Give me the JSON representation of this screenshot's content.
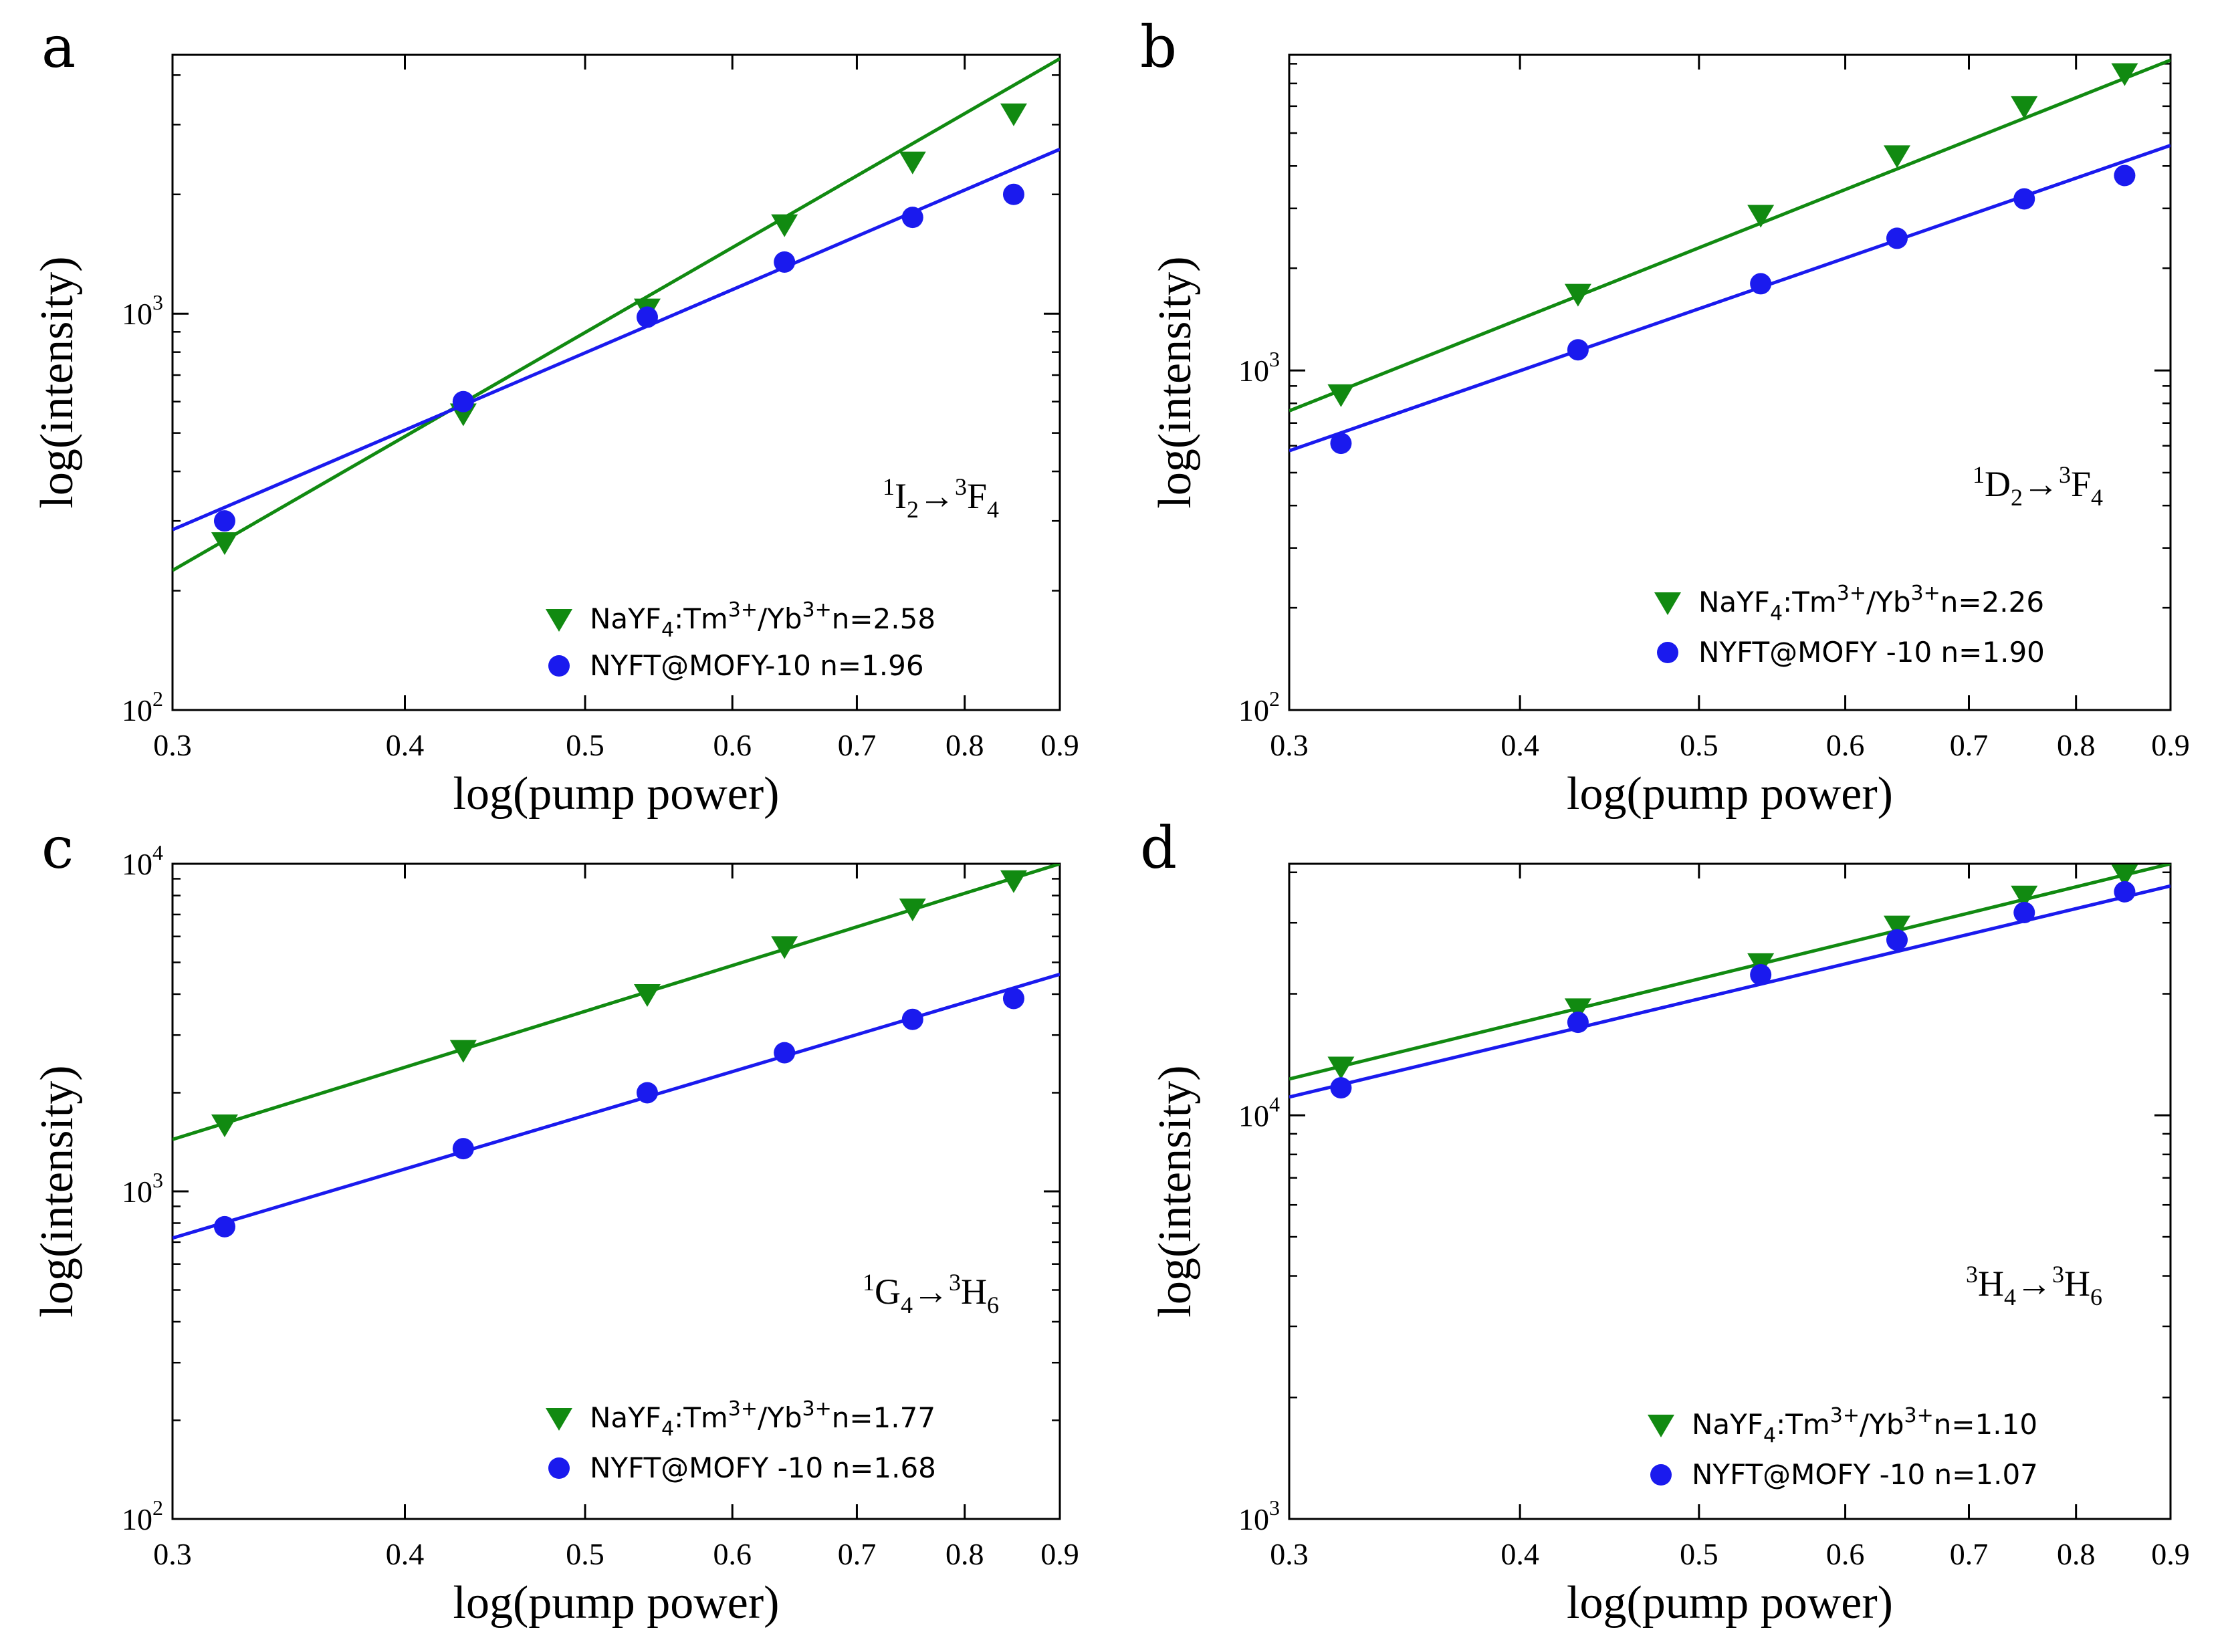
{
  "colors": {
    "green": "#118a11",
    "blue": "#1a1aee",
    "axis": "#000000"
  },
  "chart_data": [
    {
      "type": "scatter",
      "panel": "a",
      "xlabel": "log(pump power)",
      "ylabel": "log(intensity)",
      "xscale": "log",
      "yscale": "log",
      "xlim": [
        0.3,
        0.9
      ],
      "ylim": [
        100,
        4500
      ],
      "xticks": [
        0.3,
        0.4,
        0.5,
        0.6,
        0.7,
        0.8,
        0.9
      ],
      "xtick_labels": [
        "0.3",
        "0.4",
        "0.5",
        "0.6",
        "0.7",
        "0.8",
        "0.9"
      ],
      "yticks": [
        {
          "value": 100,
          "base": "10",
          "exp": "2"
        },
        {
          "value": 1000,
          "base": "10",
          "exp": "3"
        }
      ],
      "transition": {
        "upper_sup": "1",
        "upper": "I",
        "upper_sub": "2",
        "arrow": "→",
        "lower_sup": "3",
        "lower": "F",
        "lower_sub": "4"
      },
      "series": [
        {
          "name": "NaYF4:Tm3+/Yb3+",
          "legend": {
            "pre": "NaYF",
            "sub1": "4",
            "mid": ":Tm",
            "sup1": "3+",
            "slash": "/Yb",
            "sup2": "3+",
            "post": "n=2.58"
          },
          "color": "#118a11",
          "marker": "triangle-down",
          "n": 2.58,
          "x": [
            0.32,
            0.43,
            0.54,
            0.64,
            0.75,
            0.85
          ],
          "y": [
            265,
            560,
            1030,
            1680,
            2420,
            3200
          ],
          "fit_line": [
            [
              0.3,
              225
            ],
            [
              0.9,
              4400
            ]
          ]
        },
        {
          "name": "NYFT@MOFY-10",
          "legend": {
            "pre": "NYFT@MOFY-10 n=1.96"
          },
          "color": "#1a1aee",
          "marker": "circle",
          "n": 1.96,
          "x": [
            0.32,
            0.43,
            0.54,
            0.64,
            0.75,
            0.85
          ],
          "y": [
            300,
            600,
            980,
            1350,
            1750,
            2000
          ],
          "fit_line": [
            [
              0.3,
              285
            ],
            [
              0.9,
              2600
            ]
          ]
        }
      ]
    },
    {
      "type": "scatter",
      "panel": "b",
      "xlabel": "log(pump power)",
      "ylabel": "log(intensity)",
      "xscale": "log",
      "yscale": "log",
      "xlim": [
        0.3,
        0.9
      ],
      "ylim": [
        100,
        8500
      ],
      "xticks": [
        0.3,
        0.4,
        0.5,
        0.6,
        0.7,
        0.8,
        0.9
      ],
      "xtick_labels": [
        "0.3",
        "0.4",
        "0.5",
        "0.6",
        "0.7",
        "0.8",
        "0.9"
      ],
      "yticks": [
        {
          "value": 100,
          "base": "10",
          "exp": "2"
        },
        {
          "value": 1000,
          "base": "10",
          "exp": "3"
        }
      ],
      "transition": {
        "upper_sup": "1",
        "upper": "D",
        "upper_sub": "2",
        "arrow": "→",
        "lower_sup": "3",
        "lower": "F",
        "lower_sub": "4"
      },
      "series": [
        {
          "name": "NaYF4:Tm3+/Yb3+",
          "legend": {
            "pre": "NaYF",
            "sub1": "4",
            "mid": ":Tm",
            "sup1": "3+",
            "slash": "/Yb",
            "sup2": "3+",
            "post": "n=2.26"
          },
          "color": "#118a11",
          "marker": "triangle-down",
          "n": 2.26,
          "x": [
            0.32,
            0.43,
            0.54,
            0.64,
            0.75,
            0.85
          ],
          "y": [
            850,
            1680,
            2870,
            4300,
            6000,
            7500
          ],
          "fit_line": [
            [
              0.3,
              760
            ],
            [
              0.9,
              8200
            ]
          ]
        },
        {
          "name": "NYFT@MOFY-10",
          "legend": {
            "pre": "NYFT@MOFY -10 n=1.90"
          },
          "color": "#1a1aee",
          "marker": "circle",
          "n": 1.9,
          "x": [
            0.32,
            0.43,
            0.54,
            0.64,
            0.75,
            0.85
          ],
          "y": [
            610,
            1150,
            1800,
            2450,
            3200,
            3750
          ],
          "fit_line": [
            [
              0.3,
              580
            ],
            [
              0.9,
              4600
            ]
          ]
        }
      ]
    },
    {
      "type": "scatter",
      "panel": "c",
      "xlabel": "log(pump power)",
      "ylabel": "log(intensity)",
      "xscale": "log",
      "yscale": "log",
      "xlim": [
        0.3,
        0.9
      ],
      "ylim": [
        100,
        10000
      ],
      "xticks": [
        0.3,
        0.4,
        0.5,
        0.6,
        0.7,
        0.8,
        0.9
      ],
      "xtick_labels": [
        "0.3",
        "0.4",
        "0.5",
        "0.6",
        "0.7",
        "0.8",
        "0.9"
      ],
      "yticks": [
        {
          "value": 100,
          "base": "10",
          "exp": "2"
        },
        {
          "value": 1000,
          "base": "10",
          "exp": "3"
        },
        {
          "value": 10000,
          "base": "10",
          "exp": "4"
        }
      ],
      "transition": {
        "upper_sup": "1",
        "upper": "G",
        "upper_sub": "4",
        "arrow": "→",
        "lower_sup": "3",
        "lower": "H",
        "lower_sub": "6"
      },
      "series": [
        {
          "name": "NaYF4:Tm3+/Yb3+",
          "legend": {
            "pre": "NaYF",
            "sub1": "4",
            "mid": ":Tm",
            "sup1": "3+",
            "slash": "/Yb",
            "sup2": "3+",
            "post": "n=1.77"
          },
          "color": "#118a11",
          "marker": "triangle-down",
          "n": 1.77,
          "x": [
            0.32,
            0.43,
            0.54,
            0.64,
            0.75,
            0.85
          ],
          "y": [
            1600,
            2700,
            4000,
            5600,
            7300,
            8900
          ],
          "fit_line": [
            [
              0.3,
              1440
            ],
            [
              0.9,
              10000
            ]
          ]
        },
        {
          "name": "NYFT@MOFY-10",
          "legend": {
            "pre": "NYFT@MOFY -10 n=1.68"
          },
          "color": "#1a1aee",
          "marker": "circle",
          "n": 1.68,
          "x": [
            0.32,
            0.43,
            0.54,
            0.64,
            0.75,
            0.85
          ],
          "y": [
            780,
            1350,
            2000,
            2650,
            3350,
            3880
          ],
          "fit_line": [
            [
              0.3,
              720
            ],
            [
              0.9,
              4600
            ]
          ]
        }
      ]
    },
    {
      "type": "scatter",
      "panel": "d",
      "xlabel": "log(pump power)",
      "ylabel": "log(intensity)",
      "xscale": "log",
      "yscale": "log",
      "xlim": [
        0.3,
        0.9
      ],
      "ylim": [
        1000,
        42000
      ],
      "xticks": [
        0.3,
        0.4,
        0.5,
        0.6,
        0.7,
        0.8,
        0.9
      ],
      "xtick_labels": [
        "0.3",
        "0.4",
        "0.5",
        "0.6",
        "0.7",
        "0.8",
        "0.9"
      ],
      "yticks": [
        {
          "value": 1000,
          "base": "10",
          "exp": "3"
        },
        {
          "value": 10000,
          "base": "10",
          "exp": "4"
        }
      ],
      "transition": {
        "upper_sup": "3",
        "upper": "H",
        "upper_sub": "4",
        "arrow": "→",
        "lower_sup": "3",
        "lower": "H",
        "lower_sub": "6"
      },
      "series": [
        {
          "name": "NaYF4:Tm3+/Yb3+",
          "legend": {
            "pre": "NaYF",
            "sub1": "4",
            "mid": ":Tm",
            "sup1": "3+",
            "slash": "/Yb",
            "sup2": "3+",
            "post": "n=1.10"
          },
          "color": "#118a11",
          "marker": "triangle-down",
          "n": 1.1,
          "x": [
            0.32,
            0.43,
            0.54,
            0.64,
            0.75,
            0.85
          ],
          "y": [
            13200,
            18400,
            23800,
            29500,
            35000,
            39500
          ],
          "fit_line": [
            [
              0.3,
              12300
            ],
            [
              0.9,
              42000
            ]
          ]
        },
        {
          "name": "NYFT@MOFY-10",
          "legend": {
            "pre": "NYFT@MOFY -10 n=1.07"
          },
          "color": "#1a1aee",
          "marker": "circle",
          "n": 1.07,
          "x": [
            0.32,
            0.43,
            0.54,
            0.64,
            0.75,
            0.85
          ],
          "y": [
            11700,
            17000,
            22300,
            27200,
            31800,
            35800
          ],
          "fit_line": [
            [
              0.3,
              11100
            ],
            [
              0.9,
              37000
            ]
          ]
        }
      ]
    }
  ]
}
